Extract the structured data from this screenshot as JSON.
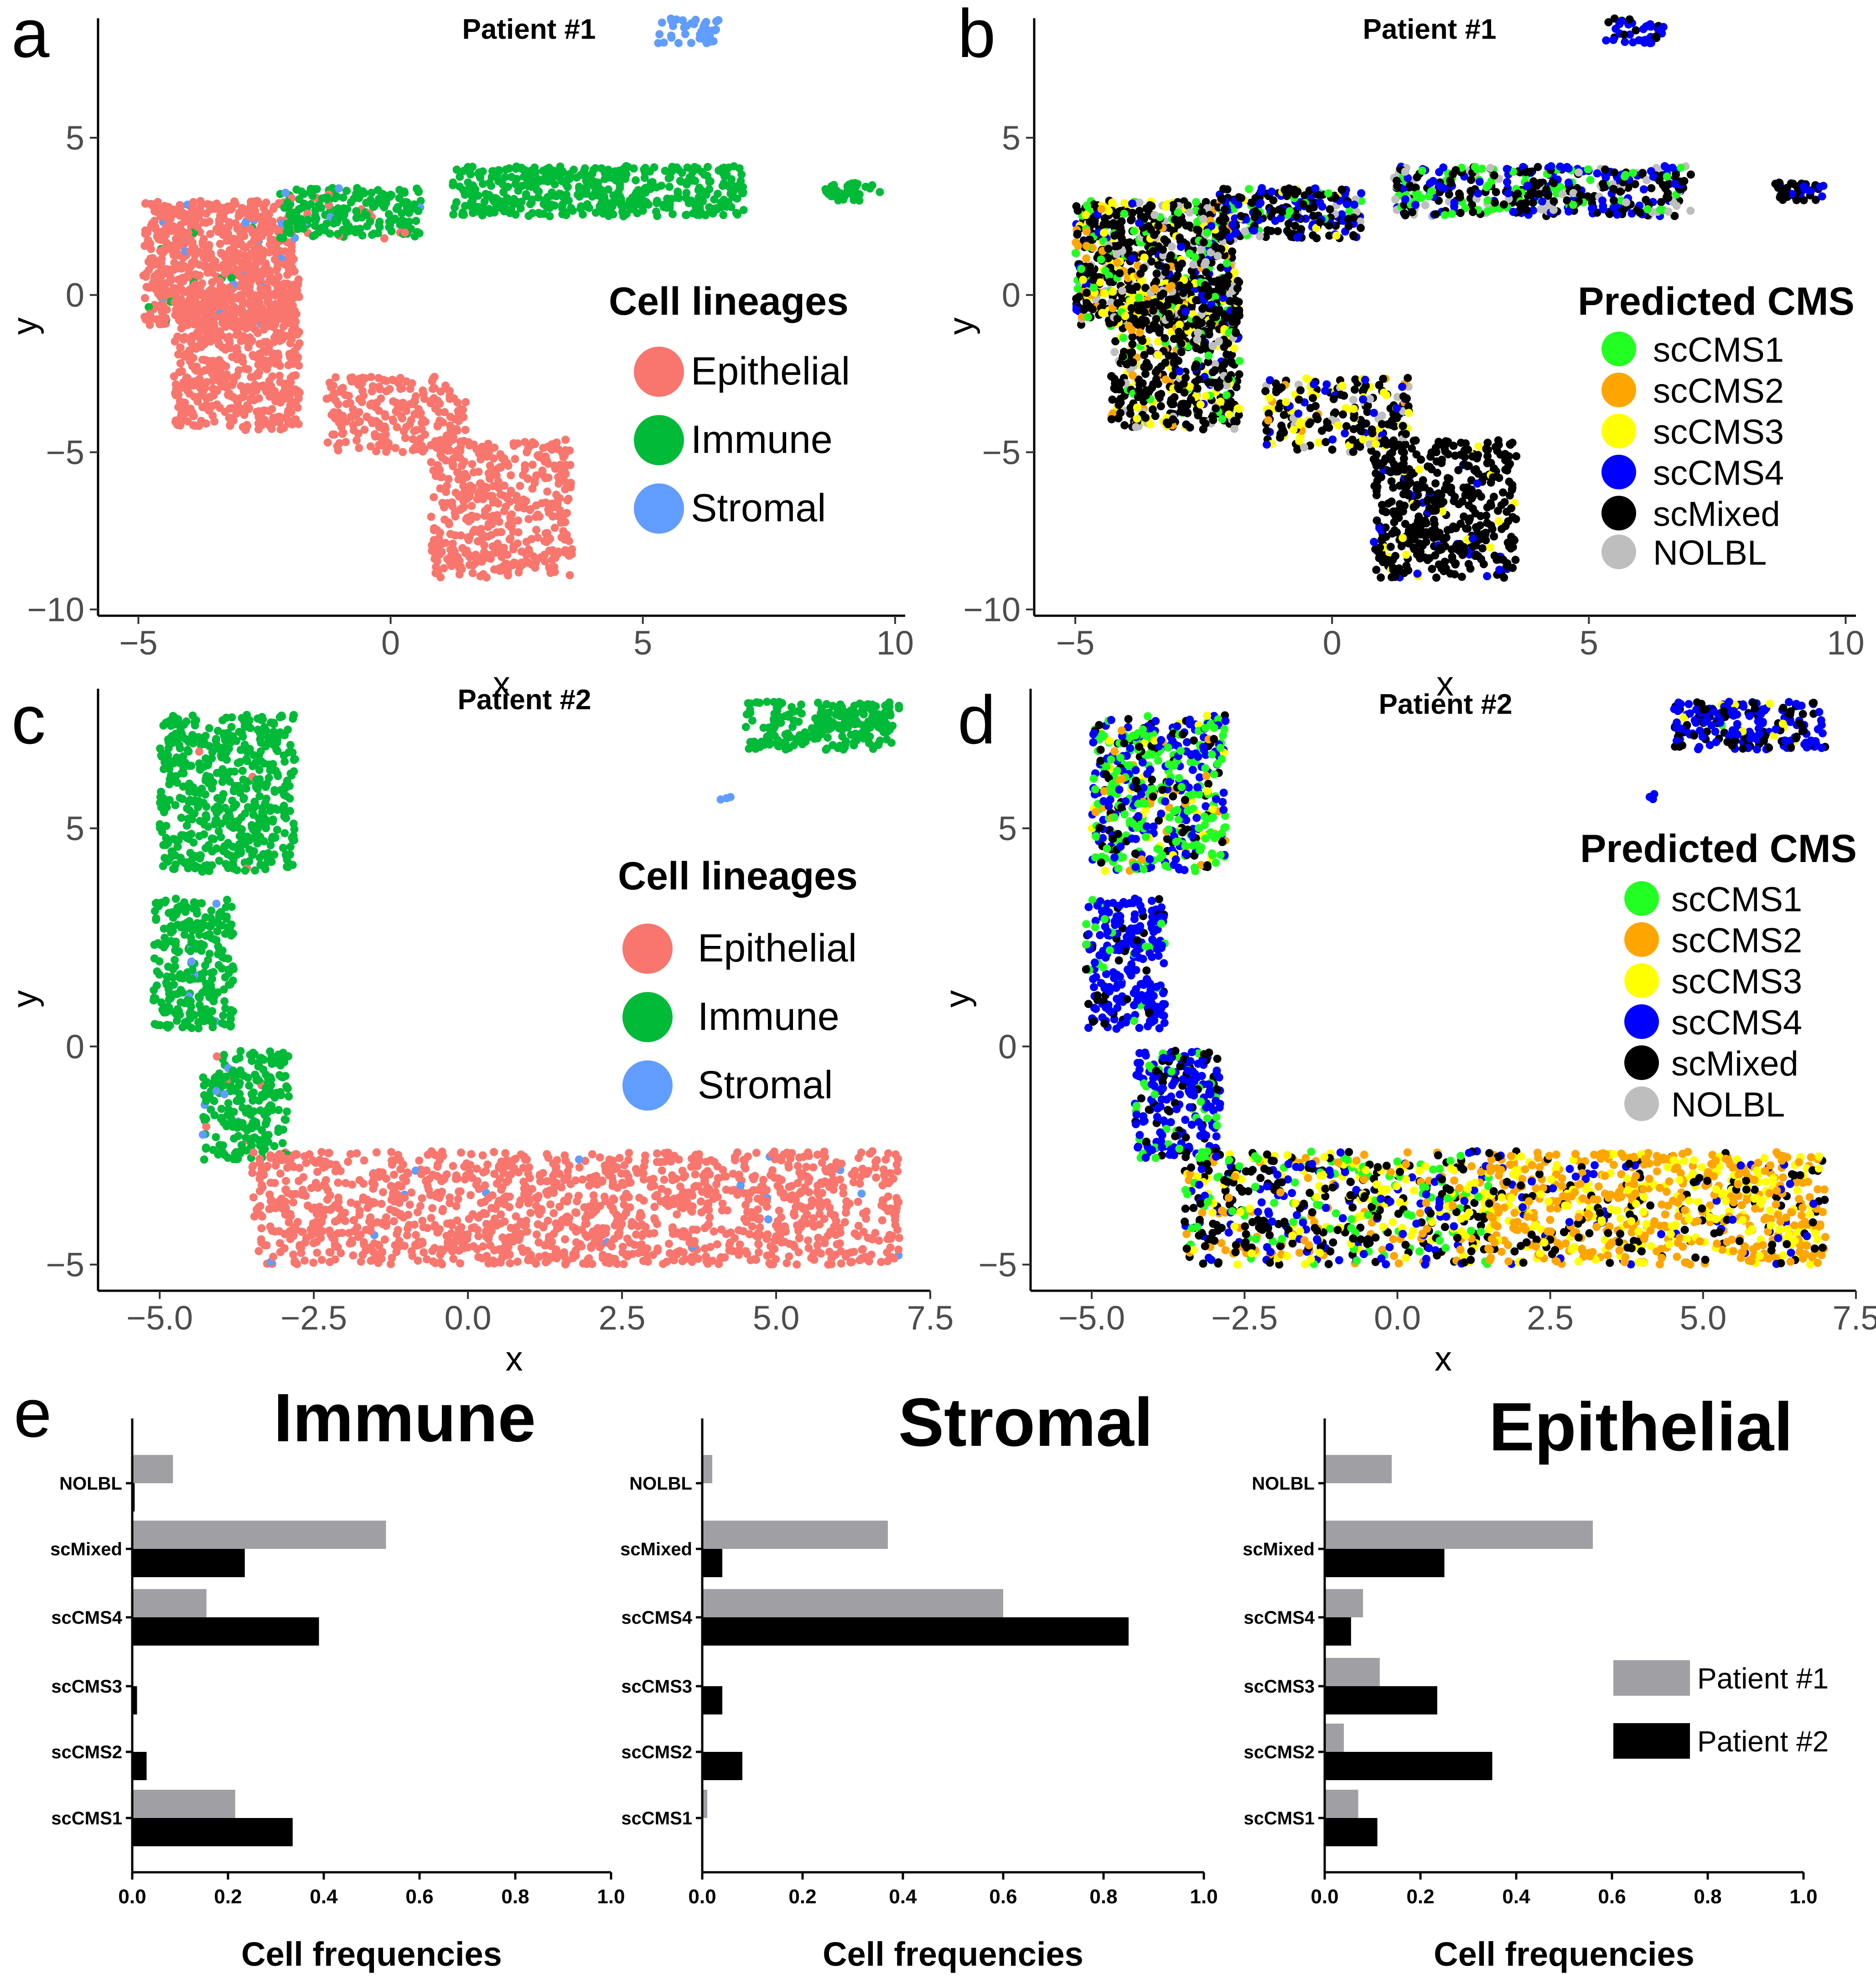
{
  "figure": {
    "panel_letters": [
      "a",
      "b",
      "c",
      "d",
      "e"
    ]
  },
  "colors": {
    "lineage": {
      "Epithelial": "#f8766d",
      "Immune": "#00ba38",
      "Stromal": "#619cff"
    },
    "cms": {
      "scCMS1": "#22ff22",
      "scCMS2": "#ffa500",
      "scCMS3": "#ffff00",
      "scCMS4": "#0000ff",
      "scMixed": "#000000",
      "NOLBL": "#bebebe"
    },
    "patient": {
      "Patient #1": "#a0a0a4",
      "Patient #2": "#000000"
    }
  },
  "chart_data": [
    {
      "id": "a",
      "type": "scatter",
      "title": "Patient #1",
      "xlabel": "x",
      "ylabel": "y",
      "xlim": [
        -5.8,
        10.2
      ],
      "ylim": [
        -10.2,
        8.8
      ],
      "xticks": [
        -5,
        0,
        5,
        10
      ],
      "yticks": [
        -10,
        -5,
        0,
        5
      ],
      "xtick_labels": [
        "-5",
        "0",
        "5",
        "10"
      ],
      "ytick_labels": [
        "-10",
        "-5",
        "0",
        "5"
      ],
      "color_by": "lineage",
      "legend": {
        "title": "Cell lineages",
        "position": "right",
        "entries": [
          "Epithelial",
          "Immune",
          "Stromal"
        ]
      },
      "clusters": [
        {
          "x": [
            -4.9,
            -1.9
          ],
          "y": [
            -1.0,
            3.0
          ],
          "n": 700,
          "mix": {
            "Epithelial": 0.93,
            "Immune": 0.04,
            "Stromal": 0.03
          }
        },
        {
          "x": [
            -4.3,
            -3.0
          ],
          "y": [
            -4.2,
            0.3
          ],
          "n": 300,
          "mix": {
            "Epithelial": 1.0
          }
        },
        {
          "x": [
            -3.0,
            -1.8
          ],
          "y": [
            -4.3,
            0.5
          ],
          "n": 300,
          "mix": {
            "Epithelial": 1.0
          }
        },
        {
          "x": [
            -2.2,
            0.6
          ],
          "y": [
            1.8,
            3.4
          ],
          "n": 220,
          "mix": {
            "Immune": 0.88,
            "Stromal": 0.06,
            "Epithelial": 0.06
          }
        },
        {
          "x": [
            -1.3,
            1.5
          ],
          "y": [
            -5.0,
            -2.6
          ],
          "n": 220,
          "mix": {
            "Epithelial": 1.0
          }
        },
        {
          "x": [
            0.8,
            3.6
          ],
          "y": [
            -9.0,
            -4.6
          ],
          "n": 450,
          "mix": {
            "Epithelial": 1.0
          }
        },
        {
          "x": [
            1.2,
            7.0
          ],
          "y": [
            2.5,
            4.1
          ],
          "n": 450,
          "mix": {
            "Immune": 1.0
          }
        },
        {
          "x": [
            8.6,
            9.7
          ],
          "y": [
            3.0,
            3.6
          ],
          "n": 40,
          "mix": {
            "Immune": 1.0
          }
        },
        {
          "x": [
            5.3,
            6.5
          ],
          "y": [
            8.0,
            8.8
          ],
          "n": 40,
          "mix": {
            "Stromal": 1.0
          }
        }
      ]
    },
    {
      "id": "b",
      "type": "scatter",
      "title": "Patient #1",
      "xlabel": "x",
      "ylabel": "y",
      "xlim": [
        -5.8,
        10.2
      ],
      "ylim": [
        -10.2,
        8.8
      ],
      "xticks": [
        -5,
        0,
        5,
        10
      ],
      "yticks": [
        -10,
        -5,
        0,
        5
      ],
      "xtick_labels": [
        "-5",
        "0",
        "5",
        "10"
      ],
      "ytick_labels": [
        "-10",
        "-5",
        "0",
        "5"
      ],
      "color_by": "cms",
      "legend": {
        "title": "Predicted CMS",
        "position": "right",
        "entries": [
          "scCMS1",
          "scCMS2",
          "scCMS3",
          "scCMS4",
          "scMixed",
          "NOLBL"
        ]
      },
      "clusters": [
        {
          "x": [
            -5.0,
            -1.9
          ],
          "y": [
            -1.0,
            3.0
          ],
          "n": 700,
          "mix": {
            "scMixed": 0.55,
            "scCMS1": 0.12,
            "scCMS3": 0.12,
            "scCMS2": 0.06,
            "scCMS4": 0.07,
            "NOLBL": 0.08
          }
        },
        {
          "x": [
            -4.3,
            -3.0
          ],
          "y": [
            -4.2,
            0.3
          ],
          "n": 300,
          "mix": {
            "scMixed": 0.6,
            "scCMS3": 0.15,
            "scCMS2": 0.1,
            "scCMS1": 0.05,
            "NOLBL": 0.1
          }
        },
        {
          "x": [
            -3.0,
            -1.8
          ],
          "y": [
            -4.3,
            0.5
          ],
          "n": 300,
          "mix": {
            "scMixed": 0.65,
            "scCMS3": 0.12,
            "scCMS1": 0.08,
            "NOLBL": 0.1,
            "scCMS4": 0.05
          }
        },
        {
          "x": [
            -2.2,
            0.6
          ],
          "y": [
            1.8,
            3.4
          ],
          "n": 220,
          "mix": {
            "scMixed": 0.5,
            "scCMS4": 0.3,
            "scCMS1": 0.1,
            "scCMS3": 0.05,
            "NOLBL": 0.05
          }
        },
        {
          "x": [
            -1.3,
            1.5
          ],
          "y": [
            -5.0,
            -2.6
          ],
          "n": 220,
          "mix": {
            "scMixed": 0.55,
            "scCMS3": 0.2,
            "scCMS4": 0.1,
            "NOLBL": 0.1,
            "scCMS2": 0.05
          }
        },
        {
          "x": [
            0.8,
            3.6
          ],
          "y": [
            -9.0,
            -4.6
          ],
          "n": 450,
          "mix": {
            "scMixed": 0.92,
            "scCMS3": 0.04,
            "scCMS4": 0.04
          }
        },
        {
          "x": [
            1.2,
            7.0
          ],
          "y": [
            2.5,
            4.1
          ],
          "n": 450,
          "mix": {
            "scMixed": 0.4,
            "scCMS4": 0.25,
            "scCMS1": 0.2,
            "NOLBL": 0.15
          }
        },
        {
          "x": [
            8.6,
            9.7
          ],
          "y": [
            3.0,
            3.6
          ],
          "n": 40,
          "mix": {
            "scMixed": 0.6,
            "scCMS4": 0.4
          }
        },
        {
          "x": [
            5.3,
            6.5
          ],
          "y": [
            8.0,
            8.8
          ],
          "n": 40,
          "mix": {
            "scCMS4": 0.8,
            "scMixed": 0.2
          }
        }
      ]
    },
    {
      "id": "c",
      "type": "scatter",
      "title": "Patient #2",
      "xlabel": "x",
      "ylabel": "y",
      "xlim": [
        -6.0,
        7.5
      ],
      "ylim": [
        -5.6,
        8.2
      ],
      "xticks": [
        -5.0,
        -2.5,
        0.0,
        2.5,
        5.0,
        7.5
      ],
      "yticks": [
        -5,
        0,
        5
      ],
      "xtick_labels": [
        "-5.0",
        "-2.5",
        "0.0",
        "2.5",
        "5.0",
        "7.5"
      ],
      "ytick_labels": [
        "-5",
        "0",
        "5"
      ],
      "color_by": "lineage",
      "legend": {
        "title": "Cell lineages",
        "position": "right",
        "entries": [
          "Epithelial",
          "Immune",
          "Stromal"
        ]
      },
      "clusters": [
        {
          "x": [
            -5.0,
            -2.8
          ],
          "y": [
            4.0,
            7.6
          ],
          "n": 520,
          "mix": {
            "Immune": 0.99,
            "Epithelial": 0.01
          }
        },
        {
          "x": [
            -5.1,
            -3.8
          ],
          "y": [
            0.4,
            3.4
          ],
          "n": 260,
          "mix": {
            "Immune": 0.97,
            "Stromal": 0.03
          }
        },
        {
          "x": [
            -4.3,
            -2.9
          ],
          "y": [
            -2.6,
            -0.1
          ],
          "n": 240,
          "mix": {
            "Immune": 0.95,
            "Stromal": 0.03,
            "Epithelial": 0.02
          }
        },
        {
          "x": [
            -3.5,
            7.0
          ],
          "y": [
            -5.0,
            -2.4
          ],
          "n": 1400,
          "mix": {
            "Epithelial": 0.99,
            "Stromal": 0.01
          }
        },
        {
          "x": [
            4.5,
            7.0
          ],
          "y": [
            6.8,
            7.9
          ],
          "n": 220,
          "mix": {
            "Immune": 1.0
          }
        },
        {
          "x": [
            4.1,
            4.3
          ],
          "y": [
            5.6,
            5.8
          ],
          "n": 3,
          "mix": {
            "Stromal": 1.0
          }
        }
      ]
    },
    {
      "id": "d",
      "type": "scatter",
      "title": "Patient #2",
      "xlabel": "x",
      "ylabel": "y",
      "xlim": [
        -6.0,
        7.5
      ],
      "ylim": [
        -5.6,
        8.2
      ],
      "xticks": [
        -5.0,
        -2.5,
        0.0,
        2.5,
        5.0,
        7.5
      ],
      "yticks": [
        -5,
        0,
        5
      ],
      "xtick_labels": [
        "-5.0",
        "-2.5",
        "0.0",
        "2.5",
        "5.0",
        "7.5"
      ],
      "ytick_labels": [
        "-5",
        "0",
        "5"
      ],
      "color_by": "cms",
      "legend": {
        "title": "Predicted CMS",
        "position": "right",
        "entries": [
          "scCMS1",
          "scCMS2",
          "scCMS3",
          "scCMS4",
          "scMixed",
          "NOLBL"
        ]
      },
      "clusters": [
        {
          "x": [
            -5.0,
            -2.8
          ],
          "y": [
            4.0,
            7.6
          ],
          "n": 520,
          "mix": {
            "scCMS1": 0.45,
            "scCMS4": 0.3,
            "scMixed": 0.15,
            "scCMS2": 0.05,
            "scCMS3": 0.05
          }
        },
        {
          "x": [
            -5.1,
            -3.8
          ],
          "y": [
            0.4,
            3.4
          ],
          "n": 260,
          "mix": {
            "scCMS4": 0.8,
            "scMixed": 0.12,
            "scCMS1": 0.08
          }
        },
        {
          "x": [
            -4.3,
            -2.9
          ],
          "y": [
            -2.6,
            -0.1
          ],
          "n": 240,
          "mix": {
            "scCMS4": 0.6,
            "scCMS1": 0.2,
            "scMixed": 0.2
          }
        },
        {
          "x": [
            -3.5,
            1.5
          ],
          "y": [
            -5.0,
            -2.4
          ],
          "n": 650,
          "mix": {
            "scMixed": 0.3,
            "scCMS1": 0.2,
            "scCMS3": 0.2,
            "scCMS4": 0.15,
            "scCMS2": 0.15
          }
        },
        {
          "x": [
            1.5,
            7.0
          ],
          "y": [
            -5.0,
            -2.4
          ],
          "n": 800,
          "mix": {
            "scCMS2": 0.5,
            "scCMS3": 0.3,
            "scMixed": 0.15,
            "scCMS4": 0.05
          }
        },
        {
          "x": [
            4.5,
            7.0
          ],
          "y": [
            6.8,
            7.9
          ],
          "n": 220,
          "mix": {
            "scCMS4": 0.65,
            "scMixed": 0.3,
            "scCMS3": 0.03,
            "scCMS1": 0.02
          }
        },
        {
          "x": [
            4.1,
            4.3
          ],
          "y": [
            5.6,
            5.8
          ],
          "n": 3,
          "mix": {
            "scCMS4": 1.0
          }
        }
      ]
    },
    {
      "id": "e-immune",
      "type": "bar",
      "orientation": "horizontal",
      "title": "Immune",
      "xlabel": "Cell frequencies",
      "xlim": [
        0,
        1.0
      ],
      "xticks": [
        0.0,
        0.2,
        0.4,
        0.6,
        0.8,
        1.0
      ],
      "xtick_labels": [
        "0.0",
        "0.2",
        "0.4",
        "0.6",
        "0.8",
        "1.0"
      ],
      "categories": [
        "NOLBL",
        "scMixed",
        "scCMS4",
        "scCMS3",
        "scCMS2",
        "scCMS1"
      ],
      "series": [
        {
          "name": "Patient #1",
          "values": [
            0.085,
            0.53,
            0.155,
            0.0,
            0.0,
            0.215
          ]
        },
        {
          "name": "Patient #2",
          "values": [
            0.005,
            0.235,
            0.39,
            0.01,
            0.03,
            0.335
          ]
        }
      ]
    },
    {
      "id": "e-stromal",
      "type": "bar",
      "orientation": "horizontal",
      "title": "Stromal",
      "xlabel": "Cell frequencies",
      "xlim": [
        0,
        1.0
      ],
      "xticks": [
        0.0,
        0.2,
        0.4,
        0.6,
        0.8,
        1.0
      ],
      "xtick_labels": [
        "0.0",
        "0.2",
        "0.4",
        "0.6",
        "0.8",
        "1.0"
      ],
      "categories": [
        "NOLBL",
        "scMixed",
        "scCMS4",
        "scCMS3",
        "scCMS2",
        "scCMS1"
      ],
      "series": [
        {
          "name": "Patient #1",
          "values": [
            0.02,
            0.37,
            0.6,
            0.0,
            0.0,
            0.01
          ]
        },
        {
          "name": "Patient #2",
          "values": [
            0.0,
            0.04,
            0.85,
            0.04,
            0.08,
            0.0
          ]
        }
      ]
    },
    {
      "id": "e-epithelial",
      "type": "bar",
      "orientation": "horizontal",
      "title": "Epithelial",
      "xlabel": "Cell frequencies",
      "xlim": [
        0,
        1.0
      ],
      "xticks": [
        0.0,
        0.2,
        0.4,
        0.6,
        0.8,
        1.0
      ],
      "xtick_labels": [
        "0.0",
        "0.2",
        "0.4",
        "0.6",
        "0.8",
        "1.0"
      ],
      "categories": [
        "NOLBL",
        "scMixed",
        "scCMS4",
        "scCMS3",
        "scCMS2",
        "scCMS1"
      ],
      "series": [
        {
          "name": "Patient #1",
          "values": [
            0.14,
            0.56,
            0.08,
            0.115,
            0.04,
            0.07
          ]
        },
        {
          "name": "Patient #2",
          "values": [
            0.0,
            0.25,
            0.055,
            0.235,
            0.35,
            0.11
          ]
        }
      ],
      "legend": {
        "position": "right",
        "entries": [
          "Patient #1",
          "Patient #2"
        ]
      }
    }
  ]
}
